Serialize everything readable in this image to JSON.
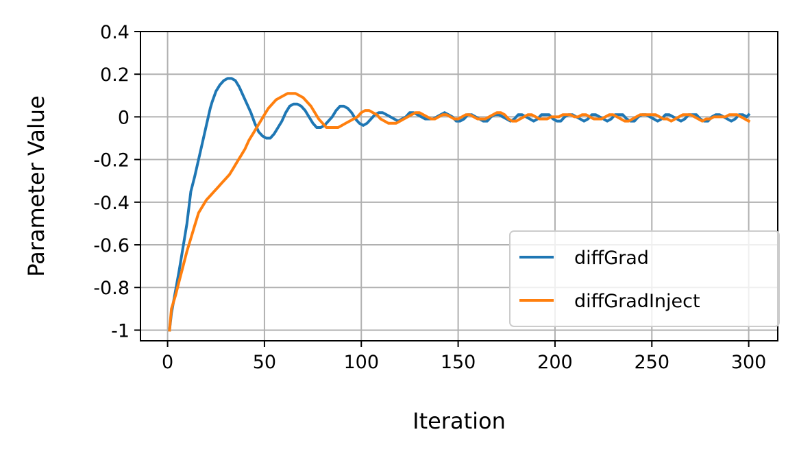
{
  "chart_data": {
    "type": "line",
    "title": "",
    "xlabel": "Iteration",
    "ylabel": "Parameter Value",
    "xlim": [
      -14,
      315
    ],
    "ylim": [
      -1.05,
      0.4
    ],
    "x_ticks": [
      0,
      50,
      100,
      150,
      200,
      250,
      300
    ],
    "x_tick_labels": [
      "0",
      "50",
      "100",
      "150",
      "200",
      "250",
      "300"
    ],
    "y_ticks": [
      0.4,
      0.2,
      0,
      -0.2,
      -0.4,
      -0.6,
      -0.8,
      -1
    ],
    "y_tick_labels": [
      "0.4",
      "0.2",
      "0",
      "-0.2",
      "-0.4",
      "-0.6",
      "-0.8",
      "-1"
    ],
    "grid": true,
    "legend_position": "lower-right",
    "series": [
      {
        "name": "diffGrad",
        "color": "#1f77b4",
        "x": [
          1,
          2,
          4,
          6,
          8,
          10,
          12,
          14,
          16,
          18,
          20,
          22,
          23,
          25,
          27,
          29,
          31,
          33,
          35,
          37,
          39,
          41,
          43,
          45,
          47,
          49,
          51,
          53,
          55,
          57,
          59,
          61,
          63,
          65,
          67,
          69,
          71,
          73,
          75,
          77,
          79,
          81,
          83,
          85,
          87,
          89,
          91,
          93,
          95,
          97,
          99,
          101,
          103,
          105,
          107,
          109,
          111,
          113,
          115,
          117,
          119,
          121,
          123,
          125,
          127,
          129,
          131,
          133,
          135,
          137,
          139,
          141,
          143,
          145,
          147,
          149,
          151,
          153,
          155,
          157,
          159,
          161,
          163,
          165,
          167,
          169,
          171,
          173,
          175,
          177,
          179,
          181,
          183,
          185,
          187,
          189,
          191,
          193,
          195,
          197,
          199,
          201,
          203,
          205,
          207,
          209,
          211,
          213,
          215,
          217,
          219,
          221,
          223,
          225,
          227,
          229,
          231,
          233,
          235,
          237,
          239,
          241,
          243,
          245,
          247,
          249,
          251,
          253,
          255,
          257,
          259,
          261,
          263,
          265,
          267,
          269,
          271,
          273,
          275,
          277,
          279,
          281,
          283,
          285,
          287,
          289,
          291,
          293,
          295,
          297,
          299,
          300
        ],
        "y": [
          -1.0,
          -0.92,
          -0.82,
          -0.72,
          -0.61,
          -0.5,
          -0.35,
          -0.28,
          -0.2,
          -0.12,
          -0.04,
          0.04,
          0.07,
          0.12,
          0.15,
          0.17,
          0.18,
          0.18,
          0.17,
          0.14,
          0.1,
          0.06,
          0.02,
          -0.03,
          -0.07,
          -0.09,
          -0.1,
          -0.1,
          -0.08,
          -0.05,
          -0.02,
          0.02,
          0.05,
          0.06,
          0.06,
          0.05,
          0.03,
          0.0,
          -0.03,
          -0.05,
          -0.05,
          -0.04,
          -0.02,
          0.0,
          0.03,
          0.05,
          0.05,
          0.04,
          0.02,
          -0.01,
          -0.03,
          -0.04,
          -0.03,
          -0.01,
          0.01,
          0.02,
          0.02,
          0.01,
          0.0,
          -0.01,
          -0.02,
          -0.01,
          0.0,
          0.02,
          0.02,
          0.01,
          0.0,
          -0.01,
          -0.01,
          -0.01,
          0.0,
          0.01,
          0.02,
          0.01,
          0.0,
          -0.02,
          -0.02,
          -0.01,
          0.01,
          0.01,
          0.0,
          -0.01,
          -0.02,
          -0.02,
          0.0,
          0.01,
          0.01,
          0.0,
          -0.01,
          -0.02,
          -0.01,
          0.01,
          0.01,
          0.0,
          -0.01,
          -0.02,
          -0.01,
          0.01,
          0.01,
          0.01,
          -0.01,
          -0.02,
          -0.02,
          0.0,
          0.01,
          0.01,
          0.0,
          -0.01,
          -0.02,
          -0.01,
          0.01,
          0.01,
          0.0,
          -0.01,
          -0.02,
          -0.01,
          0.01,
          0.01,
          0.01,
          -0.01,
          -0.02,
          -0.02,
          0.0,
          0.01,
          0.01,
          0.0,
          -0.01,
          -0.02,
          -0.01,
          0.01,
          0.01,
          0.0,
          -0.01,
          -0.02,
          -0.01,
          0.01,
          0.01,
          0.01,
          -0.01,
          -0.02,
          -0.02,
          0.0,
          0.01,
          0.01,
          0.0,
          -0.01,
          -0.02,
          -0.01,
          0.01,
          0.01,
          0.0,
          0.01
        ]
      },
      {
        "name": "diffGradInject",
        "color": "#ff7f0e",
        "x": [
          1,
          2,
          4,
          6,
          8,
          10,
          12,
          14,
          16,
          18,
          20,
          22,
          24,
          26,
          28,
          30,
          32,
          34,
          36,
          38,
          40,
          42,
          44,
          46,
          48,
          50,
          52,
          54,
          56,
          58,
          60,
          62,
          64,
          66,
          68,
          70,
          72,
          74,
          76,
          78,
          80,
          82,
          84,
          86,
          88,
          90,
          92,
          94,
          96,
          98,
          100,
          102,
          104,
          106,
          108,
          110,
          112,
          114,
          116,
          118,
          120,
          122,
          124,
          126,
          128,
          130,
          132,
          134,
          136,
          138,
          140,
          142,
          144,
          146,
          148,
          150,
          152,
          154,
          156,
          158,
          160,
          162,
          164,
          166,
          168,
          170,
          172,
          174,
          176,
          178,
          180,
          182,
          184,
          186,
          188,
          190,
          192,
          194,
          196,
          198,
          200,
          202,
          204,
          206,
          208,
          210,
          212,
          214,
          216,
          218,
          220,
          222,
          224,
          226,
          228,
          230,
          232,
          234,
          236,
          238,
          240,
          242,
          244,
          246,
          248,
          250,
          252,
          254,
          256,
          258,
          260,
          262,
          264,
          266,
          268,
          270,
          272,
          274,
          276,
          278,
          280,
          282,
          284,
          286,
          288,
          290,
          292,
          294,
          296,
          298,
          300
        ],
        "y": [
          -1.0,
          -0.9,
          -0.84,
          -0.77,
          -0.7,
          -0.63,
          -0.57,
          -0.51,
          -0.45,
          -0.42,
          -0.39,
          -0.37,
          -0.35,
          -0.33,
          -0.31,
          -0.29,
          -0.27,
          -0.24,
          -0.21,
          -0.18,
          -0.15,
          -0.11,
          -0.08,
          -0.05,
          -0.02,
          0.01,
          0.04,
          0.06,
          0.08,
          0.09,
          0.1,
          0.11,
          0.11,
          0.11,
          0.1,
          0.09,
          0.07,
          0.05,
          0.02,
          -0.01,
          -0.03,
          -0.05,
          -0.05,
          -0.05,
          -0.05,
          -0.04,
          -0.03,
          -0.02,
          -0.01,
          0.0,
          0.02,
          0.03,
          0.03,
          0.02,
          0.01,
          -0.01,
          -0.02,
          -0.03,
          -0.03,
          -0.03,
          -0.02,
          -0.01,
          0.0,
          0.01,
          0.02,
          0.02,
          0.01,
          0.0,
          -0.01,
          -0.01,
          0.0,
          0.01,
          0.01,
          0.0,
          -0.01,
          -0.01,
          0.0,
          0.01,
          0.01,
          0.0,
          -0.01,
          -0.01,
          -0.01,
          0.0,
          0.01,
          0.02,
          0.02,
          0.01,
          -0.01,
          -0.02,
          -0.02,
          -0.01,
          0.0,
          0.01,
          0.01,
          0.0,
          -0.01,
          -0.01,
          -0.01,
          0.0,
          0.0,
          0.0,
          0.01,
          0.01,
          0.01,
          0.0,
          0.0,
          0.01,
          0.01,
          0.0,
          -0.01,
          -0.01,
          -0.01,
          0.0,
          0.01,
          0.01,
          0.0,
          -0.01,
          -0.02,
          -0.02,
          -0.01,
          0.0,
          0.01,
          0.01,
          0.01,
          0.01,
          0.01,
          0.0,
          -0.01,
          -0.01,
          -0.02,
          -0.01,
          0.0,
          0.01,
          0.01,
          0.01,
          0.0,
          -0.01,
          -0.02,
          -0.01,
          -0.01,
          0.0,
          0.0,
          0.0,
          0.0,
          0.01,
          0.01,
          0.01,
          0.0,
          -0.01,
          -0.02
        ]
      }
    ]
  }
}
